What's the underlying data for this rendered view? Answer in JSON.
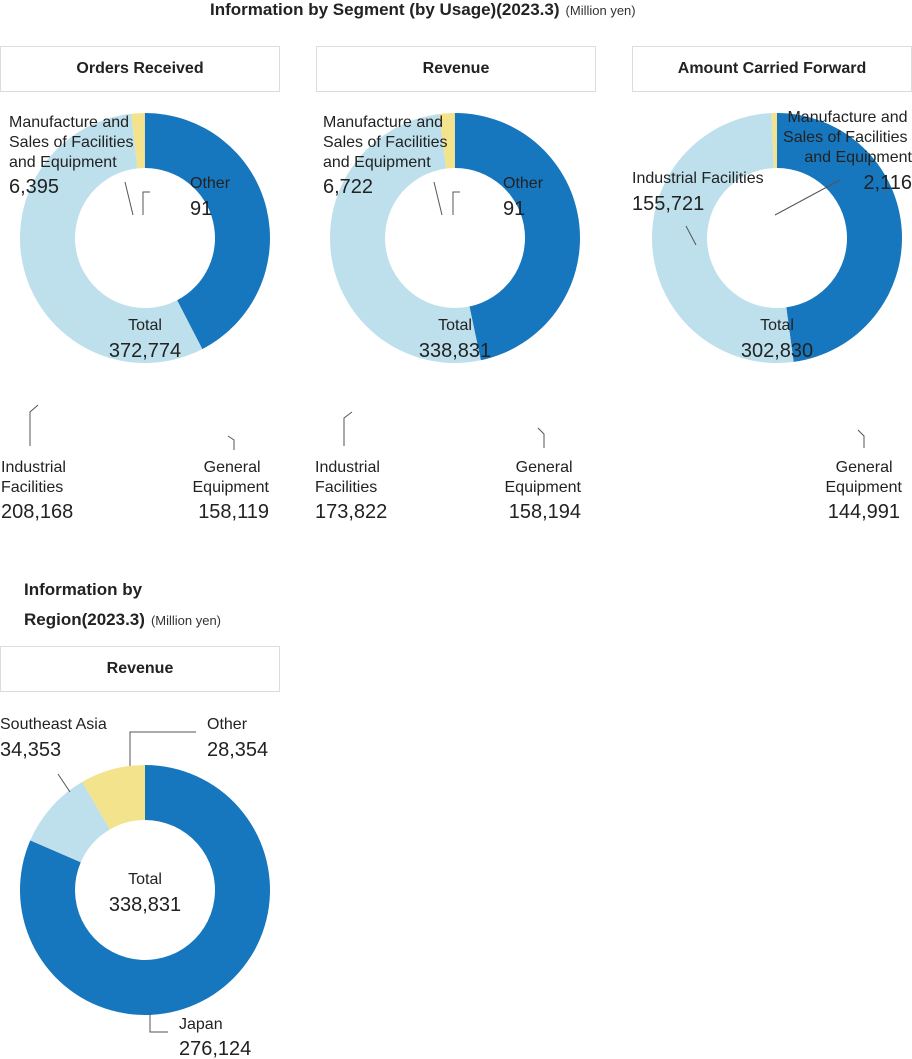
{
  "segment_section": {
    "title": "Information by Segment (by Usage)(2023.3)",
    "unit": "(Million yen)"
  },
  "region_section": {
    "title_line1": "Information by",
    "title_line2": "Region(2023.3)",
    "unit": "(Million yen)"
  },
  "colors": {
    "dark_blue": "#1777BE",
    "light_blue": "#BEDFEC",
    "yellow": "#F4E38D",
    "leader": "#555555"
  },
  "chart_data": [
    {
      "type": "pie",
      "title": "Orders Received",
      "total_label": "Total",
      "total_value": "372,774",
      "slices": [
        {
          "name": "General Equipment",
          "value": 158119,
          "value_text": "158,119",
          "color": "#1777BE"
        },
        {
          "name": "Industrial Facilities",
          "value": 208168,
          "value_text": "208,168",
          "color": "#BEDFEC"
        },
        {
          "name": "Manufacture and Sales of Facilities and Equipment",
          "value": 6395,
          "value_text": "6,395",
          "color": "#F4E38D"
        },
        {
          "name": "Other",
          "value": 91,
          "value_text": "91",
          "color": "#A9A9A9"
        }
      ]
    },
    {
      "type": "pie",
      "title": "Revenue",
      "total_label": "Total",
      "total_value": "338,831",
      "slices": [
        {
          "name": "General Equipment",
          "value": 158194,
          "value_text": "158,194",
          "color": "#1777BE"
        },
        {
          "name": "Industrial Facilities",
          "value": 173822,
          "value_text": "173,822",
          "color": "#BEDFEC"
        },
        {
          "name": "Manufacture and Sales of Facilities and Equipment",
          "value": 6722,
          "value_text": "6,722",
          "color": "#F4E38D"
        },
        {
          "name": "Other",
          "value": 91,
          "value_text": "91",
          "color": "#A9A9A9"
        }
      ]
    },
    {
      "type": "pie",
      "title": "Amount Carried Forward",
      "total_label": "Total",
      "total_value": "302,830",
      "slices": [
        {
          "name": "General Equipment",
          "value": 144991,
          "value_text": "144,991",
          "color": "#1777BE"
        },
        {
          "name": "Industrial Facilities",
          "value": 155721,
          "value_text": "155,721",
          "color": "#BEDFEC"
        },
        {
          "name": "Manufacture and Sales of Facilities and Equipment",
          "value": 2116,
          "value_text": "2,116",
          "color": "#F4E38D"
        }
      ]
    },
    {
      "type": "pie",
      "title": "Revenue",
      "total_label": "Total",
      "total_value": "338,831",
      "slices": [
        {
          "name": "Japan",
          "value": 276124,
          "value_text": "276,124",
          "color": "#1777BE"
        },
        {
          "name": "Southeast Asia",
          "value": 34353,
          "value_text": "34,353",
          "color": "#BEDFEC"
        },
        {
          "name": "Other",
          "value": 28354,
          "value_text": "28,354",
          "color": "#F4E38D"
        }
      ]
    }
  ]
}
